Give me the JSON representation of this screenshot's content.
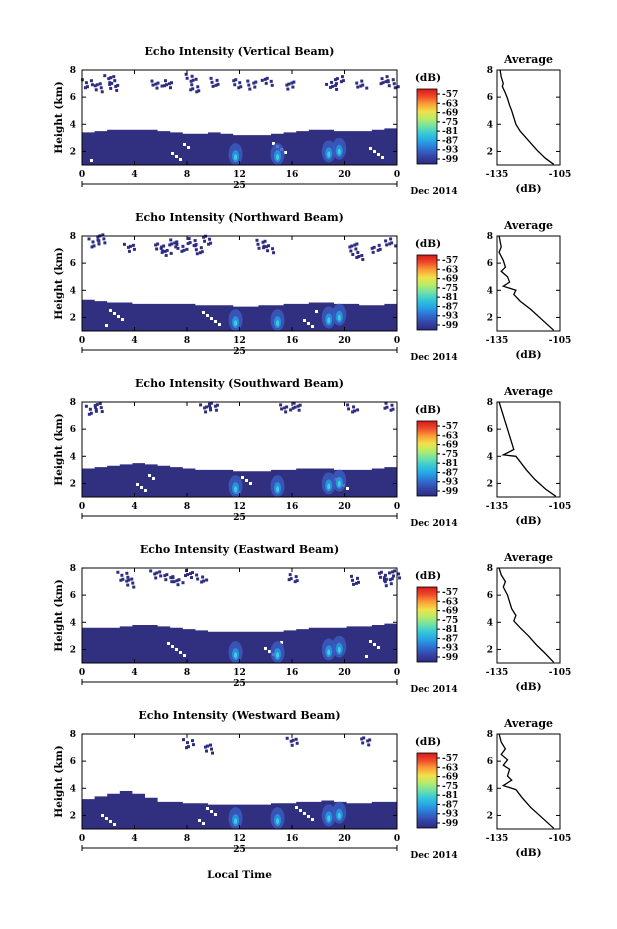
{
  "figure": {
    "x_axis_title": "Local Time",
    "date_mark": "25",
    "date_label": "Dec 2014"
  },
  "colorbar": {
    "unit_label": "(dB)",
    "tick_labels": [
      "-57",
      "-63",
      "-69",
      "-75",
      "-81",
      "-87",
      "-93",
      "-99"
    ],
    "colors": [
      "#2d2a83",
      "#3545a6",
      "#2f6fd1",
      "#26a2e6",
      "#35c7d8",
      "#6fe0a8",
      "#b6ec6a",
      "#f2e04a",
      "#fb9f36",
      "#ef4a2a",
      "#d7191c"
    ]
  },
  "chart_data": [
    {
      "type": "heatmap",
      "title": "Echo Intensity (Vertical Beam)",
      "ylabel": "Height (km)",
      "xlim": [
        0,
        24
      ],
      "ylim": [
        1,
        8
      ],
      "x_ticks": [
        "0",
        "4",
        "8",
        "12",
        "16",
        "20",
        "0"
      ],
      "y_ticks": [
        "2",
        "4",
        "6",
        "8"
      ],
      "top_echo_km": [
        3.4,
        3.5,
        3.6,
        3.6,
        3.6,
        3.6,
        3.5,
        3.4,
        3.3,
        3.3,
        3.4,
        3.3,
        3.2,
        3.2,
        3.2,
        3.3,
        3.4,
        3.5,
        3.6,
        3.6,
        3.5,
        3.5,
        3.5,
        3.6,
        3.7
      ],
      "upper_clutter": [
        [
          0.3,
          7.1
        ],
        [
          1.2,
          6.8
        ],
        [
          2.0,
          7.4
        ],
        [
          2.3,
          6.9
        ],
        [
          5.6,
          7.0
        ],
        [
          6.4,
          7.1
        ],
        [
          8.2,
          7.5
        ],
        [
          8.4,
          6.8
        ],
        [
          10.1,
          7.2
        ],
        [
          11.6,
          7.1
        ],
        [
          12.9,
          7.0
        ],
        [
          14.0,
          7.2
        ],
        [
          15.8,
          7.0
        ],
        [
          18.9,
          6.9
        ],
        [
          19.5,
          7.4
        ],
        [
          21.2,
          7.0
        ],
        [
          22.9,
          7.4
        ],
        [
          23.6,
          7.1
        ]
      ],
      "strong_echo": [
        [
          11.7,
          1.8
        ],
        [
          14.9,
          1.8
        ],
        [
          18.8,
          2.0
        ],
        [
          19.6,
          2.2
        ]
      ],
      "profile": {
        "title": "Average",
        "xlabel": "(dB)",
        "xlim": [
          -135,
          -105
        ],
        "ylim": [
          1,
          8
        ],
        "x_ticks": [
          "-135",
          "-105"
        ],
        "y_ticks": [
          "2",
          "4",
          "6",
          "8"
        ],
        "points": [
          [
            -133.5,
            8.0
          ],
          [
            -133.0,
            7.5
          ],
          [
            -132.0,
            7.0
          ],
          [
            -132.5,
            6.8
          ],
          [
            -131.0,
            6.3
          ],
          [
            -130.0,
            5.9
          ],
          [
            -129.0,
            5.4
          ],
          [
            -128.0,
            5.0
          ],
          [
            -127.0,
            4.5
          ],
          [
            -126.0,
            4.0
          ],
          [
            -124.0,
            3.5
          ],
          [
            -120.0,
            2.8
          ],
          [
            -116.0,
            2.1
          ],
          [
            -112.0,
            1.5
          ],
          [
            -108.0,
            1.05
          ]
        ]
      }
    },
    {
      "type": "heatmap",
      "title": "Echo Intensity (Northward Beam)",
      "ylabel": "Height (km)",
      "xlim": [
        0,
        24
      ],
      "ylim": [
        1,
        8
      ],
      "x_ticks": [
        "0",
        "4",
        "8",
        "12",
        "16",
        "20",
        "0"
      ],
      "y_ticks": [
        "2",
        "4",
        "6",
        "8"
      ],
      "top_echo_km": [
        3.3,
        3.2,
        3.1,
        3.1,
        3.0,
        3.0,
        3.0,
        3.0,
        3.0,
        2.9,
        2.9,
        2.9,
        2.8,
        2.8,
        2.9,
        2.9,
        3.0,
        3.0,
        3.1,
        3.1,
        3.0,
        3.0,
        2.9,
        2.9,
        3.0
      ],
      "upper_clutter": [
        [
          0.8,
          7.6
        ],
        [
          1.4,
          7.9
        ],
        [
          3.5,
          7.2
        ],
        [
          5.8,
          7.3
        ],
        [
          6.3,
          6.9
        ],
        [
          6.8,
          7.6
        ],
        [
          7.5,
          7.2
        ],
        [
          8.2,
          7.7
        ],
        [
          8.9,
          7.1
        ],
        [
          9.3,
          7.8
        ],
        [
          13.6,
          7.5
        ],
        [
          14.1,
          7.1
        ],
        [
          20.6,
          7.3
        ],
        [
          20.9,
          6.6
        ],
        [
          22.3,
          7.2
        ],
        [
          23.4,
          7.6
        ]
      ],
      "strong_echo": [
        [
          11.7,
          1.8
        ],
        [
          14.9,
          1.8
        ],
        [
          18.8,
          2.0
        ],
        [
          19.6,
          2.2
        ]
      ],
      "profile": {
        "title": "Average",
        "xlabel": "(dB)",
        "xlim": [
          -135,
          -105
        ],
        "ylim": [
          1,
          8
        ],
        "x_ticks": [
          "-135",
          "-105"
        ],
        "y_ticks": [
          "2",
          "4",
          "6",
          "8"
        ],
        "points": [
          [
            -134.0,
            8.0
          ],
          [
            -133.0,
            7.2
          ],
          [
            -134.0,
            6.8
          ],
          [
            -132.0,
            6.2
          ],
          [
            -131.0,
            5.7
          ],
          [
            -133.0,
            5.4
          ],
          [
            -130.0,
            5.0
          ],
          [
            -129.0,
            4.6
          ],
          [
            -132.0,
            4.3
          ],
          [
            -126.0,
            4.0
          ],
          [
            -127.0,
            3.7
          ],
          [
            -124.0,
            3.2
          ],
          [
            -119.0,
            2.6
          ],
          [
            -114.0,
            1.9
          ],
          [
            -108.0,
            1.05
          ]
        ]
      }
    },
    {
      "type": "heatmap",
      "title": "Echo Intensity (Southward Beam)",
      "ylabel": "Height (km)",
      "xlim": [
        0,
        24
      ],
      "ylim": [
        1,
        8
      ],
      "x_ticks": [
        "0",
        "4",
        "8",
        "12",
        "16",
        "20",
        "0"
      ],
      "y_ticks": [
        "2",
        "4",
        "6",
        "8"
      ],
      "top_echo_km": [
        3.1,
        3.2,
        3.3,
        3.4,
        3.5,
        3.4,
        3.3,
        3.2,
        3.1,
        3.0,
        3.0,
        3.0,
        2.9,
        2.9,
        2.9,
        3.0,
        3.0,
        3.1,
        3.1,
        3.1,
        3.0,
        3.0,
        3.0,
        3.1,
        3.2
      ],
      "upper_clutter": [
        [
          0.6,
          7.5
        ],
        [
          1.2,
          7.7
        ],
        [
          9.3,
          7.6
        ],
        [
          9.9,
          7.8
        ],
        [
          15.4,
          7.6
        ],
        [
          16.2,
          7.8
        ],
        [
          20.5,
          7.6
        ],
        [
          23.2,
          7.8
        ]
      ],
      "strong_echo": [
        [
          11.7,
          1.8
        ],
        [
          14.9,
          1.8
        ],
        [
          18.8,
          2.0
        ],
        [
          19.6,
          2.2
        ]
      ],
      "profile": {
        "title": "Average",
        "xlabel": "(dB)",
        "xlim": [
          -135,
          -105
        ],
        "ylim": [
          1,
          8
        ],
        "x_ticks": [
          "-135",
          "-105"
        ],
        "y_ticks": [
          "2",
          "4",
          "6",
          "8"
        ],
        "points": [
          [
            -134.0,
            8.0
          ],
          [
            -133.0,
            7.5
          ],
          [
            -132.0,
            7.0
          ],
          [
            -131.0,
            6.5
          ],
          [
            -130.0,
            6.0
          ],
          [
            -129.0,
            5.5
          ],
          [
            -128.0,
            5.0
          ],
          [
            -127.0,
            4.5
          ],
          [
            -132.0,
            4.1
          ],
          [
            -126.0,
            4.0
          ],
          [
            -124.0,
            3.6
          ],
          [
            -121.0,
            3.0
          ],
          [
            -117.0,
            2.3
          ],
          [
            -112.0,
            1.6
          ],
          [
            -107.0,
            1.05
          ]
        ]
      }
    },
    {
      "type": "heatmap",
      "title": "Echo Intensity (Eastward Beam)",
      "ylabel": "Height (km)",
      "xlim": [
        0,
        24
      ],
      "ylim": [
        1,
        8
      ],
      "x_ticks": [
        "0",
        "4",
        "8",
        "12",
        "16",
        "20",
        "0"
      ],
      "y_ticks": [
        "2",
        "4",
        "6",
        "8"
      ],
      "top_echo_km": [
        3.6,
        3.6,
        3.6,
        3.7,
        3.8,
        3.8,
        3.7,
        3.6,
        3.5,
        3.4,
        3.3,
        3.3,
        3.3,
        3.3,
        3.3,
        3.3,
        3.4,
        3.5,
        3.6,
        3.6,
        3.6,
        3.7,
        3.7,
        3.8,
        3.9
      ],
      "upper_clutter": [
        [
          3.0,
          7.5
        ],
        [
          3.6,
          7.0
        ],
        [
          5.5,
          7.6
        ],
        [
          6.5,
          7.4
        ],
        [
          7.2,
          7.1
        ],
        [
          8.0,
          7.7
        ],
        [
          9.0,
          7.3
        ],
        [
          15.9,
          7.4
        ],
        [
          20.8,
          7.2
        ],
        [
          22.7,
          7.5
        ],
        [
          23.3,
          7.1
        ],
        [
          23.7,
          7.6
        ]
      ],
      "strong_echo": [
        [
          11.7,
          1.8
        ],
        [
          14.9,
          1.8
        ],
        [
          18.8,
          2.0
        ],
        [
          19.6,
          2.2
        ]
      ],
      "profile": {
        "title": "Average",
        "xlabel": "(dB)",
        "xlim": [
          -135,
          -105
        ],
        "ylim": [
          1,
          8
        ],
        "x_ticks": [
          "-135",
          "-105"
        ],
        "y_ticks": [
          "2",
          "4",
          "6",
          "8"
        ],
        "points": [
          [
            -134.0,
            8.0
          ],
          [
            -133.0,
            7.5
          ],
          [
            -131.0,
            7.0
          ],
          [
            -132.0,
            6.6
          ],
          [
            -130.0,
            6.0
          ],
          [
            -129.0,
            5.5
          ],
          [
            -128.0,
            5.0
          ],
          [
            -126.0,
            4.5
          ],
          [
            -127.0,
            4.1
          ],
          [
            -124.0,
            3.6
          ],
          [
            -120.0,
            3.0
          ],
          [
            -116.0,
            2.3
          ],
          [
            -112.0,
            1.7
          ],
          [
            -108.0,
            1.05
          ]
        ]
      }
    },
    {
      "type": "heatmap",
      "title": "Echo Intensity (Westward Beam)",
      "ylabel": "Height (km)",
      "xlim": [
        0,
        24
      ],
      "ylim": [
        1,
        8
      ],
      "x_ticks": [
        "0",
        "4",
        "8",
        "12",
        "16",
        "20",
        "0"
      ],
      "y_ticks": [
        "2",
        "4",
        "6",
        "8"
      ],
      "top_echo_km": [
        3.2,
        3.4,
        3.6,
        3.8,
        3.6,
        3.3,
        3.0,
        3.0,
        2.9,
        2.9,
        2.8,
        2.8,
        2.8,
        2.8,
        2.8,
        2.9,
        2.9,
        3.0,
        3.0,
        3.1,
        3.0,
        2.9,
        2.9,
        3.0,
        3.0
      ],
      "upper_clutter": [
        [
          8.0,
          7.4
        ],
        [
          9.6,
          7.0
        ],
        [
          15.9,
          7.5
        ],
        [
          21.5,
          7.6
        ]
      ],
      "strong_echo": [
        [
          11.7,
          1.8
        ],
        [
          14.9,
          1.8
        ],
        [
          18.8,
          2.0
        ],
        [
          19.6,
          2.2
        ]
      ],
      "profile": {
        "title": "Average",
        "xlabel": "(dB)",
        "xlim": [
          -135,
          -105
        ],
        "ylim": [
          1,
          8
        ],
        "x_ticks": [
          "-135",
          "-105"
        ],
        "y_ticks": [
          "2",
          "4",
          "6",
          "8"
        ],
        "points": [
          [
            -134.0,
            8.0
          ],
          [
            -133.0,
            7.4
          ],
          [
            -131.0,
            6.9
          ],
          [
            -133.0,
            6.5
          ],
          [
            -130.0,
            6.1
          ],
          [
            -132.0,
            5.7
          ],
          [
            -129.0,
            5.4
          ],
          [
            -130.0,
            4.9
          ],
          [
            -128.0,
            4.6
          ],
          [
            -132.0,
            4.2
          ],
          [
            -126.0,
            3.9
          ],
          [
            -123.0,
            3.3
          ],
          [
            -119.0,
            2.6
          ],
          [
            -114.0,
            1.9
          ],
          [
            -108.0,
            1.05
          ]
        ]
      }
    }
  ]
}
